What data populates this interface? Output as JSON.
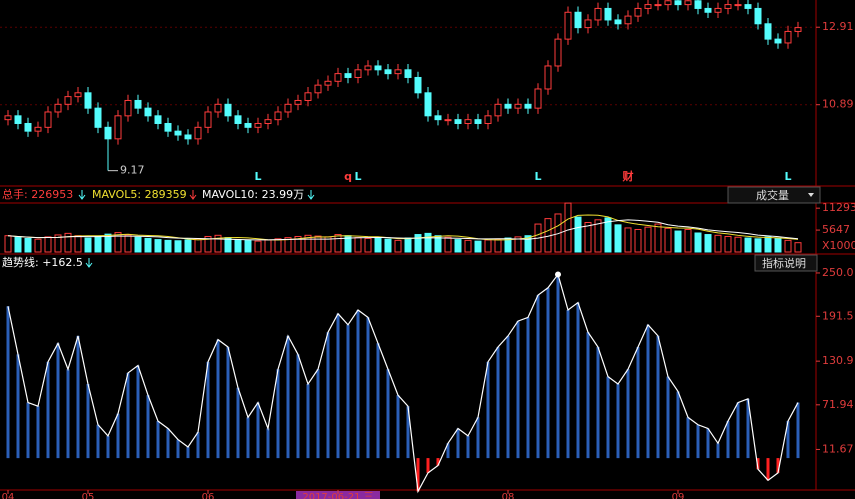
{
  "chart_data": [
    {
      "type": "candlestick",
      "open": [
        10.5,
        10.6,
        10.4,
        10.2,
        10.3,
        10.7,
        10.9,
        11.1,
        11.2,
        10.8,
        10.3,
        10.0,
        10.6,
        11.0,
        10.8,
        10.6,
        10.4,
        10.2,
        10.1,
        10.0,
        10.3,
        10.7,
        10.9,
        10.6,
        10.4,
        10.3,
        10.4,
        10.5,
        10.7,
        10.9,
        11.0,
        11.2,
        11.4,
        11.5,
        11.7,
        11.6,
        11.8,
        11.9,
        11.8,
        11.7,
        11.8,
        11.6,
        11.2,
        10.6,
        10.5,
        10.5,
        10.4,
        10.5,
        10.4,
        10.6,
        10.9,
        10.8,
        10.9,
        10.8,
        11.3,
        11.9,
        12.6,
        13.3,
        12.9,
        13.1,
        13.4,
        13.1,
        13.0,
        13.2,
        13.4,
        13.5,
        13.5,
        13.6,
        13.5,
        13.6,
        13.4,
        13.3,
        13.4,
        13.5,
        13.5,
        13.4,
        13.0,
        12.6,
        12.5,
        12.8
      ],
      "close": [
        10.6,
        10.4,
        10.2,
        10.3,
        10.7,
        10.9,
        11.1,
        11.2,
        10.8,
        10.3,
        10.0,
        10.6,
        11.0,
        10.8,
        10.6,
        10.4,
        10.2,
        10.1,
        10.0,
        10.3,
        10.7,
        10.9,
        10.6,
        10.4,
        10.3,
        10.4,
        10.5,
        10.7,
        10.9,
        11.0,
        11.2,
        11.4,
        11.5,
        11.7,
        11.6,
        11.8,
        11.9,
        11.8,
        11.7,
        11.8,
        11.6,
        11.2,
        10.6,
        10.5,
        10.5,
        10.4,
        10.5,
        10.4,
        10.6,
        10.9,
        10.8,
        10.9,
        10.8,
        11.3,
        11.9,
        12.6,
        13.3,
        12.9,
        13.1,
        13.4,
        13.1,
        13.0,
        13.2,
        13.4,
        13.5,
        13.5,
        13.6,
        13.5,
        13.6,
        13.4,
        13.3,
        13.4,
        13.5,
        13.5,
        13.4,
        13.0,
        12.6,
        12.5,
        12.8,
        12.9
      ],
      "high": [
        10.75,
        10.75,
        10.55,
        10.45,
        10.85,
        11.05,
        11.25,
        11.35,
        11.35,
        10.95,
        10.45,
        10.75,
        11.15,
        11.15,
        10.95,
        10.75,
        10.55,
        10.35,
        10.25,
        10.45,
        10.85,
        11.05,
        11.05,
        10.75,
        10.55,
        10.55,
        10.65,
        10.85,
        11.05,
        11.15,
        11.35,
        11.55,
        11.65,
        11.85,
        11.85,
        11.95,
        12.05,
        12.05,
        11.95,
        11.95,
        11.95,
        11.75,
        11.35,
        10.75,
        10.65,
        10.65,
        10.65,
        10.65,
        10.75,
        11.05,
        11.05,
        11.05,
        11.05,
        11.45,
        12.05,
        12.75,
        13.45,
        13.45,
        13.25,
        13.55,
        13.55,
        13.25,
        13.35,
        13.55,
        13.65,
        13.65,
        13.75,
        13.75,
        13.75,
        13.75,
        13.55,
        13.55,
        13.65,
        13.65,
        13.65,
        13.55,
        13.15,
        12.75,
        12.95,
        13.05
      ],
      "low": [
        10.35,
        10.25,
        10.05,
        10.05,
        10.15,
        10.55,
        10.75,
        10.95,
        10.65,
        10.15,
        9.17,
        9.85,
        10.45,
        10.65,
        10.45,
        10.25,
        10.05,
        9.95,
        9.85,
        9.85,
        10.15,
        10.55,
        10.45,
        10.25,
        10.15,
        10.15,
        10.25,
        10.35,
        10.55,
        10.75,
        10.85,
        11.05,
        11.25,
        11.35,
        11.45,
        11.45,
        11.65,
        11.65,
        11.55,
        11.55,
        11.45,
        11.05,
        10.45,
        10.35,
        10.35,
        10.25,
        10.25,
        10.25,
        10.25,
        10.45,
        10.65,
        10.65,
        10.65,
        10.65,
        11.15,
        11.75,
        12.45,
        12.75,
        12.75,
        12.95,
        12.95,
        12.85,
        12.85,
        13.05,
        13.25,
        13.35,
        13.35,
        13.35,
        13.35,
        13.25,
        13.15,
        13.15,
        13.25,
        13.35,
        13.25,
        12.85,
        12.45,
        12.35,
        12.35,
        12.65
      ],
      "up_color": "#ff3c3c",
      "down_color": "#54fcfc",
      "ylim": [
        8.77,
        13.62
      ],
      "yticks": [
        10.89,
        12.91
      ],
      "grid": true,
      "low_label_index": 10,
      "events": [
        {
          "label": "L",
          "index": 25,
          "color": "#54fcfc"
        },
        {
          "label": "q",
          "index": 34,
          "color": "#ff3c3c"
        },
        {
          "label": "L",
          "index": 35,
          "color": "#54fcfc"
        },
        {
          "label": "L",
          "index": 53,
          "color": "#54fcfc"
        },
        {
          "label": "财",
          "index": 62,
          "color": "#ff3c3c"
        },
        {
          "label": "L",
          "index": 78,
          "color": "#54fcfc"
        }
      ]
    },
    {
      "type": "volume",
      "total_label": "总手: 226953",
      "values": [
        4200,
        3800,
        3500,
        3300,
        3900,
        4400,
        4800,
        4200,
        3600,
        4000,
        4600,
        5000,
        4400,
        3800,
        3500,
        3200,
        3000,
        2900,
        3100,
        3400,
        4000,
        4300,
        3700,
        3200,
        3000,
        2800,
        3100,
        3400,
        3700,
        4000,
        4300,
        4100,
        3900,
        4500,
        4200,
        3700,
        3500,
        3800,
        3300,
        3000,
        3600,
        4500,
        4800,
        4200,
        3800,
        3200,
        3000,
        2800,
        3100,
        3300,
        3600,
        3900,
        4200,
        7200,
        8600,
        9800,
        12600,
        9000,
        7600,
        8300,
        8800,
        7000,
        6200,
        5800,
        6400,
        7200,
        6100,
        5400,
        5800,
        4900,
        4500,
        4300,
        4000,
        3800,
        3600,
        3400,
        3900,
        3500,
        3000,
        2400
      ],
      "series": [
        {
          "name": "MAVOL5: 289359",
          "color": "#f0e030",
          "values": [
            4200,
            4000,
            3830,
            3700,
            3740,
            3780,
            3940,
            4120,
            4180,
            4200,
            4240,
            4440,
            4560,
            4360,
            4260,
            4180,
            3980,
            3660,
            3340,
            3120,
            3280,
            3540,
            3700,
            3740,
            3640,
            3400,
            3160,
            3100,
            3200,
            3400,
            3700,
            3900,
            3880,
            4160,
            4200,
            4080,
            3960,
            3940,
            3700,
            3460,
            3440,
            3640,
            3840,
            4020,
            4180,
            4100,
            3800,
            3400,
            3180,
            3080,
            3160,
            3340,
            3620,
            4440,
            5500,
            6740,
            8480,
            9440,
            9520,
            9460,
            9060,
            8140,
            7580,
            7140,
            6840,
            6520,
            6340,
            6180,
            6140,
            5880,
            5340,
            4940,
            4660,
            4300,
            4040,
            3820,
            3740,
            3640,
            3480,
            3240
          ]
        },
        {
          "name": "MAVOL10: 23.99万",
          "color": "#ffffff",
          "values": [
            4200,
            4000,
            3830,
            3700,
            3740,
            3780,
            3940,
            4010,
            3970,
            3970,
            4010,
            4130,
            4090,
            4050,
            4010,
            3890,
            3710,
            3580,
            3530,
            3470,
            3410,
            3340,
            3270,
            3210,
            3160,
            3120,
            3130,
            3180,
            3240,
            3300,
            3330,
            3310,
            3330,
            3460,
            3580,
            3670,
            3710,
            3750,
            3710,
            3610,
            3540,
            3580,
            3670,
            3630,
            3590,
            3540,
            3490,
            3390,
            3370,
            3400,
            3400,
            3340,
            3280,
            3580,
            4060,
            4720,
            5680,
            6300,
            6740,
            7260,
            7780,
            8090,
            8290,
            8150,
            7930,
            7670,
            7020,
            6660,
            6480,
            6140,
            5710,
            5440,
            5220,
            5020,
            4740,
            4360,
            4140,
            3950,
            3670,
            3420
          ]
        }
      ],
      "button": "成交量",
      "unit": "X1000",
      "ylim": [
        0,
        13400
      ],
      "yticks": [
        5647,
        11293
      ]
    },
    {
      "type": "trend",
      "legend_label": "趋势线: +162.5",
      "button": "指标说明",
      "values": [
        205,
        140,
        75,
        70,
        130,
        155,
        120,
        165,
        100,
        45,
        30,
        60,
        115,
        125,
        85,
        50,
        40,
        25,
        15,
        35,
        130,
        160,
        150,
        95,
        55,
        75,
        40,
        120,
        165,
        140,
        100,
        120,
        170,
        195,
        180,
        200,
        190,
        155,
        120,
        85,
        70,
        -45,
        -20,
        -10,
        20,
        40,
        30,
        55,
        130,
        150,
        165,
        185,
        190,
        220,
        230,
        248,
        200,
        210,
        170,
        150,
        110,
        100,
        120,
        150,
        180,
        165,
        110,
        90,
        55,
        45,
        40,
        20,
        50,
        75,
        80,
        -15,
        -30,
        -20,
        50,
        75
      ],
      "color": "#2b5fb8",
      "negative_color": "#ff2020",
      "line_color": "#ffffff",
      "categories": [
        "04",
        null,
        null,
        null,
        null,
        null,
        null,
        null,
        "05",
        null,
        null,
        null,
        null,
        null,
        null,
        null,
        null,
        null,
        null,
        null,
        "06",
        null,
        null,
        null,
        null,
        null,
        null,
        null,
        null,
        null,
        null,
        null,
        null,
        "2017-06-21 三",
        null,
        null,
        null,
        null,
        null,
        null,
        null,
        null,
        null,
        null,
        null,
        null,
        null,
        null,
        null,
        null,
        "08",
        null,
        null,
        null,
        null,
        null,
        null,
        null,
        null,
        null,
        null,
        null,
        null,
        null,
        null,
        null,
        null,
        "09",
        null,
        null,
        null,
        null,
        null,
        null,
        null,
        null,
        null,
        null,
        null,
        null
      ],
      "highlight_index": 33,
      "ylim": [
        -45.8,
        264.8
      ],
      "yticks": [
        {
          "value": 250,
          "label": "250.0"
        },
        191.5,
        130.9,
        71.94,
        11.67
      ]
    }
  ]
}
